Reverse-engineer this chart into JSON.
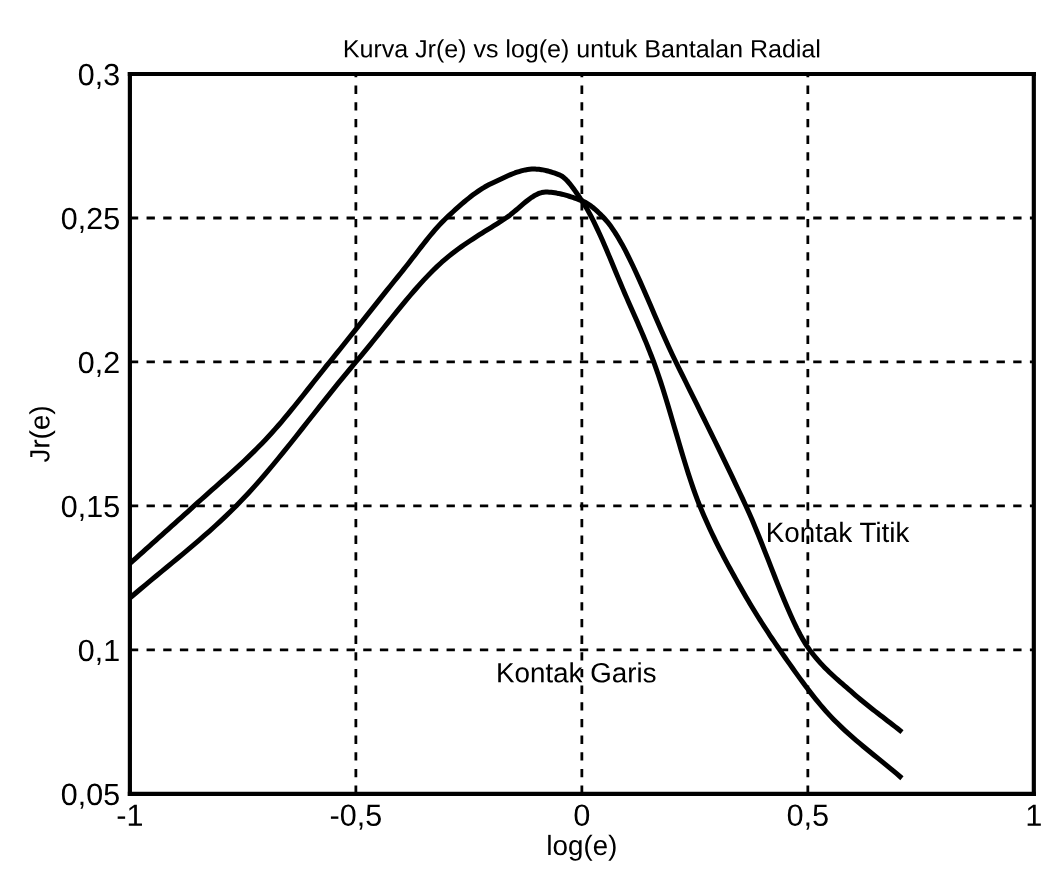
{
  "chart_data": {
    "type": "line",
    "title": "Kurva Jr(e) vs log(e) untuk Bantalan Radial",
    "xlabel": "log(e)",
    "ylabel": "Jr(e)",
    "xlim": [
      -1,
      1
    ],
    "ylim": [
      0.05,
      0.3
    ],
    "xticks": [
      -1,
      {
        "value": -0.5,
        "label": "-0,5"
      },
      0,
      {
        "value": 0.5,
        "label": "0,5"
      },
      1
    ],
    "yticks": [
      {
        "value": 0.05,
        "label": "0,05"
      },
      {
        "value": 0.1,
        "label": "0,1"
      },
      {
        "value": 0.15,
        "label": "0,15"
      },
      {
        "value": 0.2,
        "label": "0,2"
      },
      {
        "value": 0.25,
        "label": "0,25"
      },
      {
        "value": 0.3,
        "label": "0,3"
      }
    ],
    "grid": true,
    "legend": false,
    "series": [
      {
        "color": "#000000",
        "x": [
          -1,
          -0.858,
          -0.7,
          -0.558,
          -0.4,
          -0.3,
          -0.2,
          -0.106,
          -0.05,
          0,
          0.1,
          0.159,
          0.261,
          0.35,
          0.438,
          0.55,
          0.704
        ],
        "values": [
          0.13,
          0.15,
          0.173,
          0.2,
          0.231,
          0.25,
          0.262,
          0.267,
          0.265,
          0.256,
          0.222,
          0.2,
          0.15,
          0.122,
          0.1,
          0.077,
          0.056
        ]
      },
      {
        "color": "#000000",
        "x": [
          -1,
          -0.765,
          -0.5,
          -0.3,
          -0.168,
          -0.08,
          0,
          0.049,
          0.208,
          0.363,
          0.504,
          0.6,
          0.704
        ],
        "values": [
          0.118,
          0.15,
          0.2,
          0.236,
          0.25,
          0.259,
          0.256,
          0.25,
          0.2,
          0.15,
          0.1,
          0.085,
          0.072
        ]
      }
    ],
    "annotations": [
      {
        "text": "Kontak Titik",
        "x": 0.37,
        "y": 0.14
      },
      "Kontak Garis"
    ]
  }
}
